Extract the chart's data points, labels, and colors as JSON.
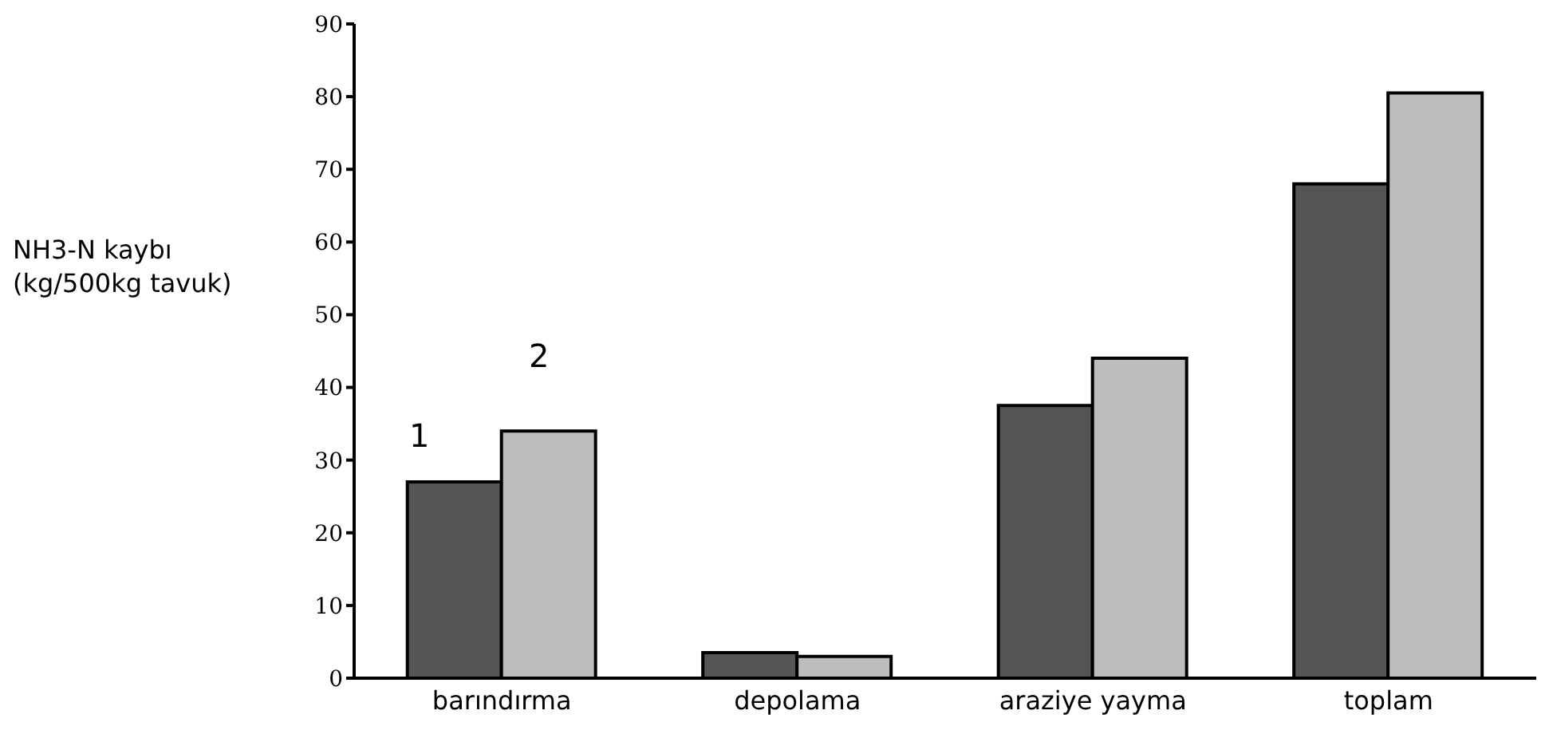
{
  "chart_data": {
    "type": "bar",
    "ylabel": "NH3-N kaybı\n(kg/500kg tavuk)",
    "categories": [
      "barındırma",
      "depolama",
      "araziye yayma",
      "toplam"
    ],
    "series": [
      {
        "name": "1",
        "color": "#555555",
        "values": [
          27,
          3.5,
          37.5,
          68
        ]
      },
      {
        "name": "2",
        "color": "#bdbdbd",
        "values": [
          34,
          3,
          44,
          80.5
        ]
      }
    ],
    "ylim": [
      0,
      90
    ],
    "yticks": [
      0,
      10,
      20,
      30,
      40,
      50,
      60,
      70,
      80,
      90
    ],
    "grid": false,
    "legend": false
  }
}
